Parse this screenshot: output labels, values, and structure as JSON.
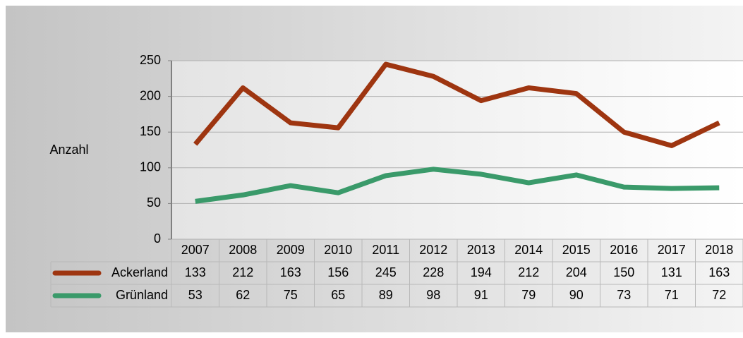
{
  "chart_data": {
    "type": "line",
    "y_label": "Anzahl",
    "categories": [
      "2007",
      "2008",
      "2009",
      "2010",
      "2011",
      "2012",
      "2013",
      "2014",
      "2015",
      "2016",
      "2017",
      "2018"
    ],
    "series": [
      {
        "name": "Ackerland",
        "color": "#9e3510",
        "values": [
          133,
          212,
          163,
          156,
          245,
          228,
          194,
          212,
          204,
          150,
          131,
          163
        ]
      },
      {
        "name": "Grünland",
        "color": "#3a9a6a",
        "values": [
          53,
          62,
          75,
          65,
          89,
          98,
          91,
          79,
          90,
          73,
          71,
          72
        ]
      }
    ],
    "ylim": [
      0,
      250
    ],
    "yticks": [
      0,
      50,
      100,
      150,
      200,
      250
    ],
    "grid": true
  }
}
